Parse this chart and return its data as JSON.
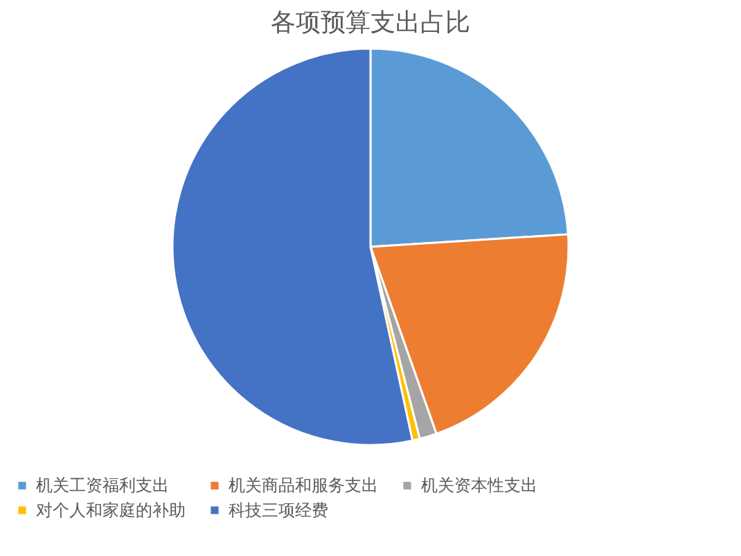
{
  "chart_data": {
    "type": "pie",
    "title": "各项预算支出占比",
    "categories": [
      "机关工资福利支出",
      "机关商品和服务支出",
      "机关资本性支出",
      "对个人和家庭的补助",
      "科技三项经费"
    ],
    "values": [
      24.0,
      20.6,
      1.4,
      0.6,
      53.4
    ],
    "colors": [
      "#5b9bd5",
      "#ed7d31",
      "#a5a5a5",
      "#ffc000",
      "#4472c4"
    ],
    "legend": "bottom"
  }
}
